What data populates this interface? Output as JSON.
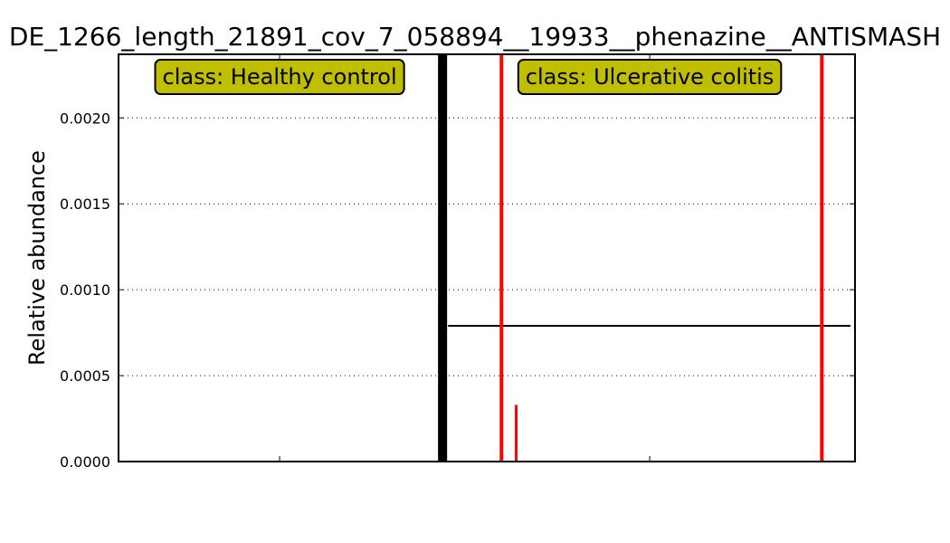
{
  "chart_data": {
    "type": "bar",
    "title": "DE_1266_length_21891_cov_7_058894__19933__phenazine__ANTISMASH",
    "xlabel": "",
    "ylabel": "Relative abundance",
    "ylim": [
      0,
      0.00237
    ],
    "yticks": [
      "0.0000",
      "0.0005",
      "0.0010",
      "0.0015",
      "0.0020"
    ],
    "ytick_values": [
      0,
      0.0005,
      0.001,
      0.0015,
      0.002
    ],
    "grid": "y-dotted",
    "n_samples": 400,
    "groups": [
      {
        "label": "class: Healthy control",
        "start": 0,
        "end": 175,
        "box_color": "#bfbf00",
        "mean": 0
      },
      {
        "label": "class: Ulcerative colitis",
        "start": 177,
        "end": 400,
        "box_color": "#bfbf00",
        "mean": 0.00079
      }
    ],
    "bars": [
      {
        "x": 208,
        "value": 0.00237,
        "color": "#ff0000"
      },
      {
        "x": 216,
        "value": 0.00033,
        "color": "#ff0000"
      },
      {
        "x": 382,
        "value": 0.00237,
        "color": "#ff0000"
      }
    ],
    "separator": {
      "x": 176,
      "color": "#000000"
    },
    "mean_line_color": "#000000"
  }
}
